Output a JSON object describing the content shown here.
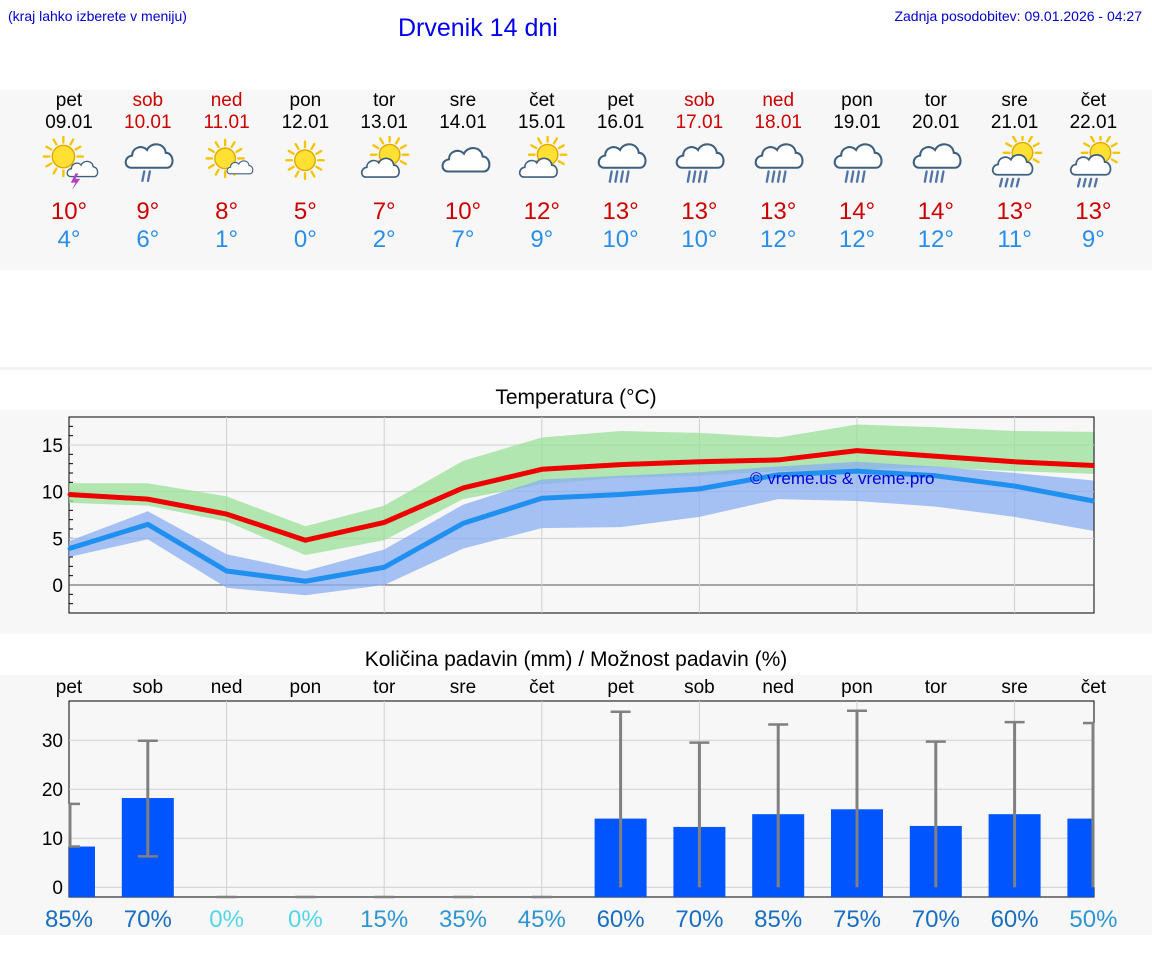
{
  "header": {
    "hint": "(kraj lahko izberete v meniju)",
    "title": "Drvenik 14 dni",
    "updated": "Zadnja posodobitev: 09.01.2026 - 04:27"
  },
  "days": [
    {
      "name": "pet",
      "date": "09.01",
      "weekend": false,
      "icon": "sun-cloud-thunder-icon",
      "max": "10°",
      "min": "4°"
    },
    {
      "name": "sob",
      "date": "10.01",
      "weekend": true,
      "icon": "cloud-rain-icon",
      "max": "9°",
      "min": "6°"
    },
    {
      "name": "ned",
      "date": "11.01",
      "weekend": true,
      "icon": "sun-small-cloud-icon",
      "max": "8°",
      "min": "1°"
    },
    {
      "name": "pon",
      "date": "12.01",
      "weekend": false,
      "icon": "sun-icon",
      "max": "5°",
      "min": "0°"
    },
    {
      "name": "tor",
      "date": "13.01",
      "weekend": false,
      "icon": "sun-cloud-icon",
      "max": "7°",
      "min": "2°"
    },
    {
      "name": "sre",
      "date": "14.01",
      "weekend": false,
      "icon": "cloudy-icon",
      "max": "10°",
      "min": "7°"
    },
    {
      "name": "čet",
      "date": "15.01",
      "weekend": false,
      "icon": "sun-cloud-icon",
      "max": "12°",
      "min": "9°"
    },
    {
      "name": "pet",
      "date": "16.01",
      "weekend": false,
      "icon": "cloud-heavy-rain-icon",
      "max": "13°",
      "min": "10°"
    },
    {
      "name": "sob",
      "date": "17.01",
      "weekend": true,
      "icon": "cloud-heavy-rain-icon",
      "max": "13°",
      "min": "10°"
    },
    {
      "name": "ned",
      "date": "18.01",
      "weekend": true,
      "icon": "cloud-heavy-rain-icon",
      "max": "13°",
      "min": "12°"
    },
    {
      "name": "pon",
      "date": "19.01",
      "weekend": false,
      "icon": "cloud-heavy-rain-icon",
      "max": "14°",
      "min": "12°"
    },
    {
      "name": "tor",
      "date": "20.01",
      "weekend": false,
      "icon": "cloud-heavy-rain-icon",
      "max": "14°",
      "min": "12°"
    },
    {
      "name": "sre",
      "date": "21.01",
      "weekend": false,
      "icon": "sun-cloud-rain-icon",
      "max": "13°",
      "min": "11°"
    },
    {
      "name": "čet",
      "date": "22.01",
      "weekend": false,
      "icon": "sun-cloud-rain-icon",
      "max": "13°",
      "min": "9°"
    }
  ],
  "colors": {
    "max": "#ee0000",
    "min": "#2090f0",
    "max_band": "#99e099",
    "min_band": "#8aaef0",
    "bar": "#0055ff",
    "error": "#808080"
  },
  "chart_data": [
    {
      "type": "line",
      "title": "Temperatura (°C)",
      "watermark": "© vreme.us & vreme.pro",
      "yticks": [
        0,
        5,
        10,
        15
      ],
      "ytick_labels": [
        "0",
        "5",
        "10",
        "15"
      ],
      "ylim": [
        -3,
        18
      ],
      "x": [
        0,
        1,
        2,
        3,
        4,
        5,
        6,
        7,
        8,
        9,
        10,
        11,
        12,
        13
      ],
      "series": [
        {
          "name": "max",
          "values": [
            9.7,
            9.2,
            7.6,
            4.8,
            6.7,
            10.4,
            12.4,
            12.9,
            13.2,
            13.4,
            14.4,
            13.8,
            13.2,
            12.8
          ],
          "band_low": [
            8.8,
            8.5,
            6.8,
            3.2,
            4.8,
            9.2,
            10.8,
            11.5,
            11.7,
            12.2,
            12.4,
            12.6,
            12.2,
            11.9
          ],
          "band_high": [
            10.9,
            10.9,
            9.5,
            6.3,
            8.5,
            13.3,
            15.8,
            16.5,
            16.3,
            15.8,
            17.2,
            16.9,
            16.5,
            16.4
          ]
        },
        {
          "name": "min",
          "values": [
            3.9,
            6.5,
            1.5,
            0.4,
            1.9,
            6.6,
            9.3,
            9.7,
            10.3,
            11.8,
            12.2,
            11.7,
            10.6,
            9.0
          ],
          "band_low": [
            3.0,
            4.9,
            -0.3,
            -1.1,
            0.0,
            3.9,
            6.1,
            6.2,
            7.3,
            9.2,
            9.0,
            8.4,
            7.3,
            5.8
          ],
          "band_high": [
            4.7,
            7.9,
            3.3,
            1.5,
            3.8,
            8.6,
            11.3,
            11.7,
            12.1,
            12.7,
            13.2,
            12.7,
            12.0,
            11.2
          ]
        }
      ]
    },
    {
      "type": "bar",
      "title": "Količina padavin (mm) / Možnost padavin (%)",
      "categories": [
        "pet",
        "sob",
        "ned",
        "pon",
        "tor",
        "sre",
        "čet",
        "pet",
        "sob",
        "ned",
        "pon",
        "tor",
        "sre",
        "čet"
      ],
      "values": [
        8.3,
        18.2,
        0,
        0,
        0,
        0,
        0,
        14.0,
        12.3,
        14.9,
        15.9,
        12.5,
        14.9,
        14.0
      ],
      "error_low": [
        8.3,
        6.3,
        0,
        0,
        0,
        0,
        0,
        0,
        0,
        0,
        0,
        0,
        0,
        0
      ],
      "error_high": [
        17.0,
        29.9,
        0,
        0,
        0,
        0,
        0,
        35.8,
        29.5,
        33.2,
        36.0,
        29.7,
        33.7,
        33.5
      ],
      "probability": [
        "85%",
        "70%",
        "0%",
        "0%",
        "15%",
        "35%",
        "45%",
        "60%",
        "70%",
        "85%",
        "75%",
        "70%",
        "60%",
        "50%"
      ],
      "prob_colors": [
        "#1a6ec0",
        "#1a6ec0",
        "#55d6e8",
        "#55d6e8",
        "#2f95d2",
        "#2f95d2",
        "#2f95d2",
        "#1a6ec0",
        "#1a6ec0",
        "#1a6ec0",
        "#1a6ec0",
        "#1a6ec0",
        "#1a6ec0",
        "#2f95d2"
      ],
      "yticks": [
        0,
        10,
        20,
        30
      ],
      "ytick_labels": [
        "0",
        "10",
        "20",
        "30"
      ],
      "ylim": [
        -2,
        38
      ]
    }
  ]
}
